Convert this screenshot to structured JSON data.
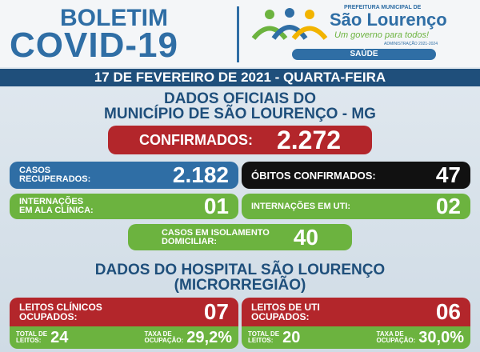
{
  "header": {
    "title": "BOLETIM",
    "subtitle": "COVID-19",
    "logo": {
      "top": "PREFEITURA MUNICIPAL DE",
      "name": "São Lourenço",
      "slogan": "Um governo para todos!",
      "admin": "ADMINISTRAÇÃO 2021-2024",
      "department": "SAÚDE"
    }
  },
  "date": "17 DE FEVEREIRO DE 2021 - QUARTA-FEIRA",
  "municipal": {
    "title": [
      "DADOS OFICIAIS DO",
      "MUNICÍPIO DE SÃO LOURENÇO - MG"
    ],
    "confirmed": {
      "label": [
        "CONFIRMADOS:"
      ],
      "value": "2.272"
    },
    "recovered": {
      "label": [
        "CASOS",
        "RECUPERADOS:"
      ],
      "value": "2.182"
    },
    "deaths": {
      "label": [
        "ÓBITOS CONFIRMADOS:"
      ],
      "value": "47"
    },
    "ward": {
      "label": [
        "INTERNAÇÕES",
        "EM ALA CLÍNICA:"
      ],
      "value": "01"
    },
    "icu": {
      "label": [
        "INTERNAÇÕES EM UTI:"
      ],
      "value": "02"
    },
    "isolation": {
      "label": [
        "CASOS EM ISOLAMENTO",
        "DOMICILIAR:"
      ],
      "value": "40"
    }
  },
  "hospital": {
    "title": [
      "DADOS DO HOSPITAL SÃO LOURENÇO",
      "(MICRORREGIÃO)"
    ],
    "clinical": {
      "label": [
        "LEITOS CLÍNICOS",
        "OCUPADOS:"
      ],
      "value": "07",
      "total_label": [
        "TOTAL DE",
        "LEITOS:"
      ],
      "total": "24",
      "rate_label": [
        "TAXA DE",
        "OCUPAÇÃO:"
      ],
      "rate": "29,2%"
    },
    "icu": {
      "label": [
        "LEITOS DE UTI",
        "OCUPADOS:"
      ],
      "value": "06",
      "total_label": [
        "TOTAL DE",
        "LEITOS:"
      ],
      "total": "20",
      "rate_label": [
        "TAXA DE",
        "OCUPAÇÃO:"
      ],
      "rate": "30,0%"
    }
  }
}
